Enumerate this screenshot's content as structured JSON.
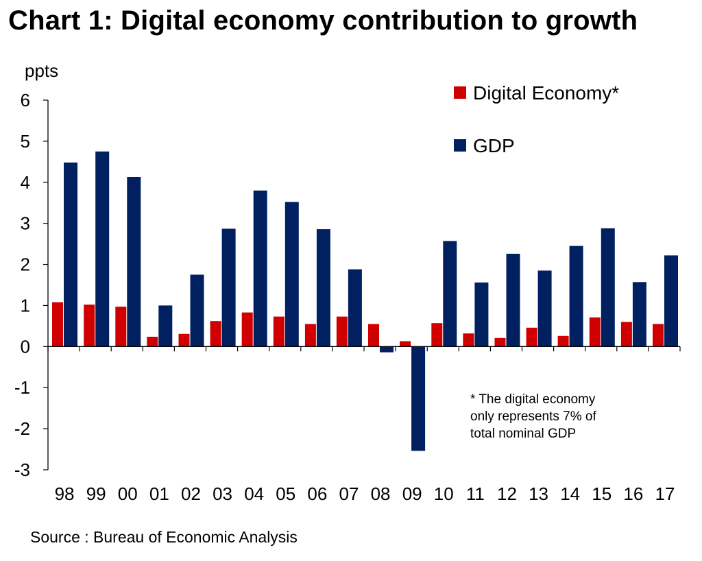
{
  "chart_data": {
    "type": "bar",
    "title": "Chart 1: Digital economy contribution to growth",
    "ylabel": "ppts",
    "xlabel": "",
    "ylim": [
      -3,
      6
    ],
    "yticks": [
      6,
      5,
      4,
      3,
      2,
      1,
      0,
      -1,
      -2,
      -3
    ],
    "categories": [
      "98",
      "99",
      "00",
      "01",
      "02",
      "03",
      "04",
      "05",
      "06",
      "07",
      "08",
      "09",
      "10",
      "11",
      "12",
      "13",
      "14",
      "15",
      "16",
      "17"
    ],
    "series": [
      {
        "name": "Digital Economy*",
        "color": "#d00000",
        "values": [
          1.08,
          1.02,
          0.97,
          0.24,
          0.31,
          0.62,
          0.83,
          0.73,
          0.55,
          0.73,
          0.55,
          0.13,
          0.57,
          0.32,
          0.21,
          0.46,
          0.26,
          0.71,
          0.6,
          0.55
        ]
      },
      {
        "name": "GDP",
        "color": "#002060",
        "values": [
          4.48,
          4.75,
          4.13,
          1.0,
          1.75,
          2.87,
          3.8,
          3.52,
          2.86,
          1.88,
          -0.14,
          -2.54,
          2.57,
          1.56,
          2.26,
          1.85,
          2.45,
          2.88,
          1.57,
          2.22
        ]
      }
    ],
    "legend_position": "top-right",
    "grid": false,
    "annotation": [
      "* The digital economy",
      "only represents 7% of",
      "total nominal GDP"
    ]
  },
  "source": "Source : Bureau of Economic Analysis"
}
